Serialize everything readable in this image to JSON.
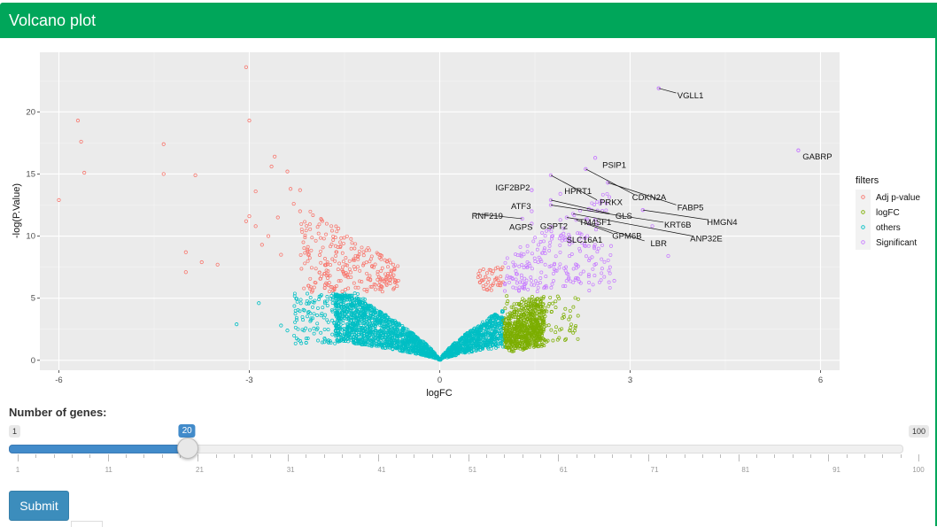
{
  "header": {
    "title": "Volcano plot"
  },
  "controls": {
    "label": "Number of genes:",
    "slider": {
      "min": 1,
      "max": 100,
      "value": 20,
      "min_label": "1",
      "max_label": "100",
      "value_label": "20",
      "grid_labels": [
        "1",
        "11",
        "21",
        "31",
        "41",
        "51",
        "61",
        "71",
        "81",
        "91",
        "100"
      ]
    },
    "submit_label": "Submit"
  },
  "chart_data": {
    "type": "scatter",
    "xlabel": "logFC",
    "ylabel": "-log(P.Value)",
    "xlim": [
      -6.3,
      6.3
    ],
    "ylim": [
      -0.8,
      24.8
    ],
    "xticks": [
      -6,
      -3,
      0,
      3,
      6
    ],
    "xtick_labels": [
      "-6",
      "-3",
      "0",
      "3",
      "6"
    ],
    "yticks": [
      0,
      5,
      10,
      15,
      20
    ],
    "ytick_labels": [
      "0",
      "5",
      "10",
      "15",
      "20"
    ],
    "grid": true,
    "legend": {
      "title": "filters",
      "position": "right"
    },
    "series": [
      {
        "name": "Adj p-value",
        "color": "#f8766d"
      },
      {
        "name": "logFC",
        "color": "#7cae00"
      },
      {
        "name": "others",
        "color": "#00bfc4"
      },
      {
        "name": "Significant",
        "color": "#c77cff"
      }
    ],
    "outliers_adj": [
      [
        -3.05,
        23.6
      ],
      [
        -5.7,
        19.3
      ],
      [
        -5.65,
        17.6
      ],
      [
        -5.6,
        15.1
      ],
      [
        -6.0,
        12.9
      ],
      [
        -3.0,
        19.3
      ],
      [
        -4.35,
        17.4
      ],
      [
        -4.35,
        15.0
      ],
      [
        -3.85,
        14.9
      ],
      [
        -2.6,
        16.4
      ],
      [
        -2.65,
        15.6
      ],
      [
        -2.4,
        15.2
      ],
      [
        -2.9,
        13.6
      ],
      [
        -2.35,
        13.8
      ],
      [
        -2.2,
        13.7
      ],
      [
        -2.3,
        12.6
      ],
      [
        -3.05,
        11.2
      ],
      [
        -3.0,
        11.6
      ],
      [
        -2.9,
        10.8
      ],
      [
        -2.7,
        10.0
      ],
      [
        -4.0,
        8.7
      ],
      [
        -3.75,
        7.9
      ],
      [
        -3.5,
        7.7
      ],
      [
        -4.0,
        7.1
      ],
      [
        -2.2,
        12.0
      ],
      [
        -2.55,
        11.5
      ],
      [
        -2.8,
        9.3
      ],
      [
        -2.5,
        8.5
      ]
    ],
    "outliers_others": [
      [
        -3.2,
        2.9
      ],
      [
        -2.5,
        2.8
      ],
      [
        -2.4,
        2.4
      ],
      [
        -2.85,
        4.6
      ]
    ],
    "outliers_sig": [
      [
        5.65,
        16.9
      ],
      [
        3.45,
        21.9
      ],
      [
        2.45,
        16.3
      ],
      [
        2.3,
        15.4
      ],
      [
        2.65,
        14.3
      ],
      [
        1.45,
        13.7
      ],
      [
        3.2,
        12.1
      ],
      [
        3.35,
        10.8
      ],
      [
        3.6,
        8.4
      ],
      [
        2.7,
        9.2
      ],
      [
        2.4,
        8.3
      ],
      [
        2.75,
        6.4
      ]
    ],
    "dense_note": "",
    "annotations": [
      {
        "label": "VGLL1",
        "x": 3.45,
        "y": 21.9,
        "tx": 3.95,
        "ty": 21.3,
        "anchor": "middle"
      },
      {
        "label": "GABRP",
        "x": 5.65,
        "y": 16.9,
        "tx": 5.95,
        "ty": 16.4,
        "anchor": "middle"
      },
      {
        "label": "PSIP1",
        "x": 2.45,
        "y": 16.3,
        "tx": 2.75,
        "ty": 15.7,
        "anchor": "middle"
      },
      {
        "label": "IGF2BP2",
        "x": 1.45,
        "y": 13.7,
        "tx": 1.15,
        "ty": 13.9,
        "anchor": "middle"
      },
      {
        "label": "HPRT1",
        "x": 1.9,
        "y": 13.4,
        "tx": 2.18,
        "ty": 13.6,
        "anchor": "middle"
      },
      {
        "label": "CDKN2A",
        "x": 2.3,
        "y": 15.4,
        "tx": 3.3,
        "ty": 13.1,
        "anchor": "middle"
      },
      {
        "label": "PRKX",
        "x": 1.75,
        "y": 14.9,
        "tx": 2.7,
        "ty": 12.7,
        "anchor": "middle"
      },
      {
        "label": "FABP5",
        "x": 2.65,
        "y": 14.3,
        "tx": 3.95,
        "ty": 12.3,
        "anchor": "middle"
      },
      {
        "label": "ATF3",
        "x": 1.45,
        "y": 12.0,
        "tx": 1.28,
        "ty": 12.4,
        "anchor": "middle"
      },
      {
        "label": "GLS",
        "x": 1.75,
        "y": 12.9,
        "tx": 2.9,
        "ty": 11.6,
        "anchor": "middle"
      },
      {
        "label": "HMGN4",
        "x": 3.2,
        "y": 12.1,
        "tx": 4.45,
        "ty": 11.1,
        "anchor": "middle"
      },
      {
        "label": "KRT6B",
        "x": 1.75,
        "y": 12.5,
        "tx": 3.75,
        "ty": 10.9,
        "anchor": "middle"
      },
      {
        "label": "RNF219",
        "x": 1.3,
        "y": 11.4,
        "tx": 0.75,
        "ty": 11.6,
        "anchor": "middle"
      },
      {
        "label": "TM4SF1",
        "x": 2.0,
        "y": 11.5,
        "tx": 2.45,
        "ty": 11.1,
        "anchor": "middle"
      },
      {
        "label": "AGPS",
        "x": 1.45,
        "y": 11.0,
        "tx": 1.28,
        "ty": 10.7,
        "anchor": "middle"
      },
      {
        "label": "GSPT2",
        "x": 1.9,
        "y": 11.3,
        "tx": 1.8,
        "ty": 10.8,
        "anchor": "middle"
      },
      {
        "label": "GPM6B",
        "x": 2.15,
        "y": 11.3,
        "tx": 2.95,
        "ty": 10.0,
        "anchor": "middle"
      },
      {
        "label": "ANP32E",
        "x": 2.1,
        "y": 11.8,
        "tx": 4.2,
        "ty": 9.8,
        "anchor": "middle"
      },
      {
        "label": "SLC16A1",
        "x": 1.95,
        "y": 10.2,
        "tx": 2.28,
        "ty": 9.7,
        "anchor": "middle"
      },
      {
        "label": "LBR",
        "x": 2.35,
        "y": 11.0,
        "tx": 3.45,
        "ty": 9.4,
        "anchor": "middle"
      }
    ]
  }
}
